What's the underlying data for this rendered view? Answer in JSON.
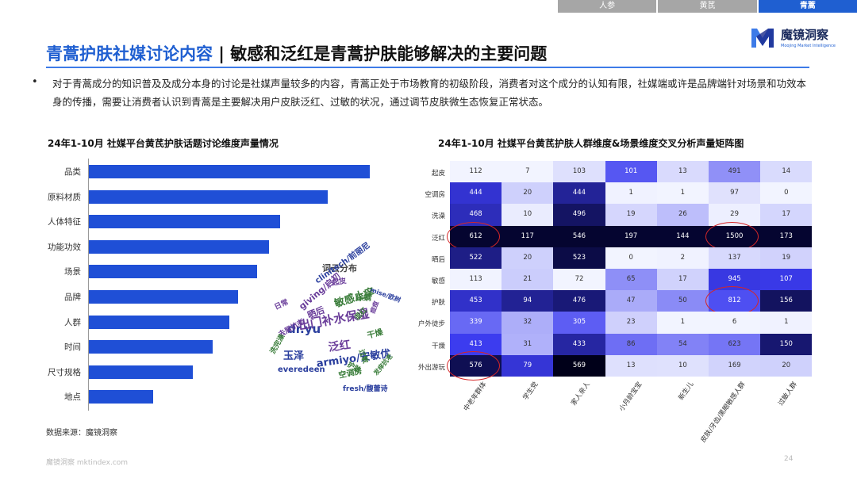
{
  "tabs": [
    "人参",
    "黄芪",
    "青蒿"
  ],
  "logo": {
    "name": "魔镜洞察",
    "sub": "Moojing Market Intelligence"
  },
  "title": {
    "highlight": "青蒿护肤社媒讨论内容",
    "rest": " | 敏感和泛红是青蒿护肤能够解决的主要问题"
  },
  "paragraph": "对于青蒿成分的知识普及及成分本身的讨论是社媒声量较多的内容，青蒿正处于市场教育的初级阶段，消费者对这个成分的认知有限，社媒端或许是品牌端针对场景和功效本身的传播，需要让消费者认识到青蒿是主要解决用户皮肤泛红、过敏的状况，通过调节皮肤微生态恢复正常状态。",
  "bullet": "•",
  "left_chart_title": "24年1-10月 社媒平台黄芪护肤话题讨论维度声量情况",
  "right_chart_title": "24年1-10月 社媒平台黄芪护肤人群维度&场景维度交叉分析声量矩阵图",
  "word_cloud": {
    "label": "词云分布",
    "words": [
      {
        "t": "dr.yu",
        "c": "#2b3f9e",
        "s": 15
      },
      {
        "t": "玉泽",
        "c": "#2b3f9e",
        "s": 13
      },
      {
        "t": "armiyo/安敏优",
        "c": "#2b3f9e",
        "s": 13
      },
      {
        "t": "出门补水保湿",
        "c": "#6a3d9a",
        "s": 15
      },
      {
        "t": "敏感止痒",
        "c": "#3a7d3a",
        "s": 13
      },
      {
        "t": "泛红",
        "c": "#6a3d9a",
        "s": 14
      },
      {
        "t": "clinitech/前丽尼",
        "c": "#2b3f9e",
        "s": 10
      },
      {
        "t": "everedeen",
        "c": "#2b3f9e",
        "s": 10
      },
      {
        "t": "giving/启初",
        "c": "#6a3d9a",
        "s": 11
      },
      {
        "t": "fresh/馥蕾诗",
        "c": "#2b3f9e",
        "s": 9
      },
      {
        "t": "晒后",
        "c": "#6a3d9a",
        "s": 11
      },
      {
        "t": "除螨",
        "c": "#3a7d3a",
        "s": 10
      },
      {
        "t": "干燥",
        "c": "#3a7d3a",
        "s": 10
      },
      {
        "t": "空调房",
        "c": "#3a7d3a",
        "s": 10
      },
      {
        "t": "去屑抗老",
        "c": "#6a3d9a",
        "s": 9
      },
      {
        "t": "起皮",
        "c": "#6a3d9a",
        "s": 9
      },
      {
        "t": "洗完澡",
        "c": "#3a7d3a",
        "s": 9
      },
      {
        "t": "mise/欧树",
        "c": "#2b3f9e",
        "s": 8
      },
      {
        "t": "退红",
        "c": "#3a7d3a",
        "s": 9
      },
      {
        "t": "过敏",
        "c": "#3a7d3a",
        "s": 9
      },
      {
        "t": "发痒抗老",
        "c": "#3a7d3a",
        "s": 8
      },
      {
        "t": "日常",
        "c": "#6a3d9a",
        "s": 9
      },
      {
        "t": "护肤",
        "c": "#3a7d3a",
        "s": 9
      },
      {
        "t": "痘痘",
        "c": "#6a3d9a",
        "s": 8
      }
    ]
  },
  "source": "数据来源：魔镜洞察",
  "footer": "魔镜洞察  mktindex.com",
  "page": "24",
  "chart_data": [
    {
      "type": "bar",
      "orientation": "horizontal",
      "title": "24年1-10月 社媒平台黄芪护肤话题讨论维度声量情况",
      "categories": [
        "品类",
        "原料材质",
        "人体特征",
        "功能功效",
        "场景",
        "品牌",
        "人群",
        "时间",
        "尺寸规格",
        "地点"
      ],
      "values": [
        100,
        85,
        68,
        64,
        60,
        53,
        50,
        44,
        37,
        23
      ],
      "xlabel": "",
      "ylabel": "",
      "bar_color": "#1f4fd6"
    },
    {
      "type": "heatmap",
      "title": "24年1-10月 社媒平台黄芪护肤人群维度&场景维度交叉分析声量矩阵图",
      "rows": [
        "起皮",
        "空调房",
        "洗澡",
        "泛红",
        "晒后",
        "敏感",
        "护肤",
        "户外徒步",
        "干燥",
        "外出游玩"
      ],
      "columns": [
        "中老年群体",
        "学生党",
        "家人亲人",
        "小月龄宝宝",
        "新生儿",
        "皮肤/牙齿/黑眼敏感人群",
        "过敏人群"
      ],
      "values": [
        [
          112,
          7,
          103,
          101,
          13,
          491,
          14
        ],
        [
          444,
          20,
          444,
          1,
          1,
          97,
          0
        ],
        [
          468,
          10,
          496,
          19,
          26,
          29,
          17
        ],
        [
          612,
          117,
          546,
          197,
          144,
          1500,
          173
        ],
        [
          522,
          20,
          523,
          0,
          2,
          137,
          19
        ],
        [
          113,
          21,
          72,
          65,
          17,
          945,
          107
        ],
        [
          453,
          94,
          476,
          47,
          50,
          812,
          156
        ],
        [
          339,
          32,
          305,
          23,
          1,
          6,
          1
        ],
        [
          413,
          31,
          433,
          86,
          54,
          623,
          150
        ],
        [
          576,
          79,
          569,
          13,
          10,
          169,
          20
        ]
      ],
      "column_ranges": [
        [
          112,
          612
        ],
        [
          7,
          117
        ],
        [
          72,
          546
        ],
        [
          0,
          197
        ],
        [
          1,
          144
        ],
        [
          6,
          1500
        ],
        [
          0,
          173
        ]
      ],
      "highlighted_cells": [
        [
          3,
          0
        ],
        [
          3,
          5
        ],
        [
          6,
          5
        ],
        [
          9,
          0
        ]
      ],
      "highlight_color": "#d62728",
      "color_low": "#f2f4ff",
      "color_high": "#050530"
    }
  ]
}
